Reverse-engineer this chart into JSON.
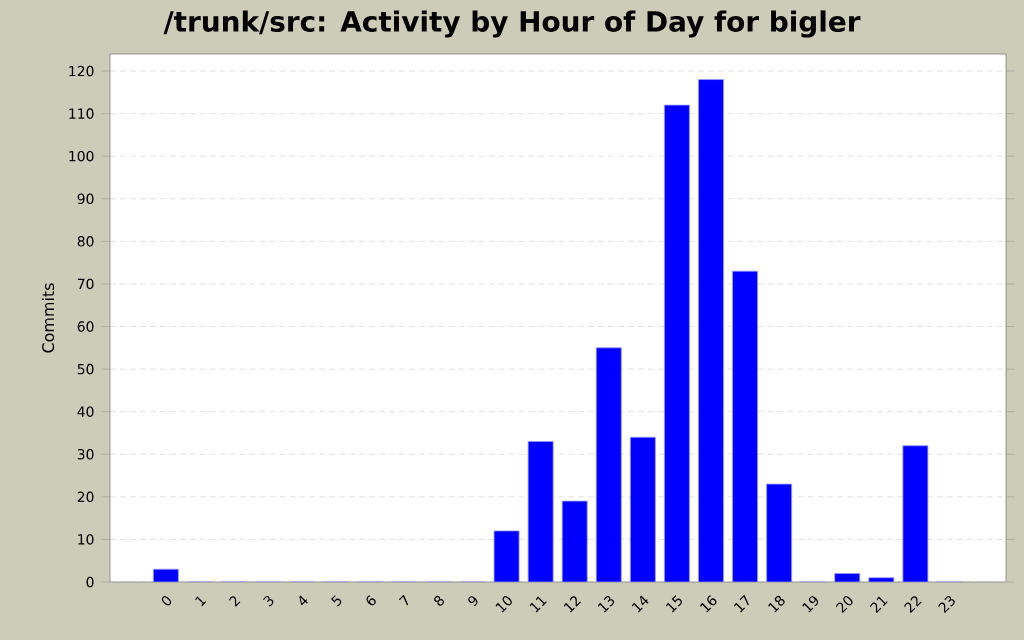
{
  "chart_data": {
    "type": "bar",
    "title": "/trunk/src: Activity by Hour of Day for bigler",
    "ylabel": "Commits",
    "categories": [
      "0",
      "1",
      "2",
      "3",
      "4",
      "5",
      "6",
      "7",
      "8",
      "9",
      "10",
      "11",
      "12",
      "13",
      "14",
      "15",
      "16",
      "17",
      "18",
      "19",
      "20",
      "21",
      "22",
      "23"
    ],
    "values": [
      3,
      0,
      0,
      0,
      0,
      0,
      0,
      0,
      0,
      0,
      12,
      33,
      19,
      55,
      34,
      112,
      118,
      73,
      23,
      0,
      2,
      1,
      32,
      0
    ],
    "color": "#0000ff",
    "ylim": [
      0,
      124
    ],
    "yticks": [
      0,
      10,
      20,
      30,
      40,
      50,
      60,
      70,
      80,
      90,
      100,
      110,
      120
    ],
    "grid": "y"
  }
}
